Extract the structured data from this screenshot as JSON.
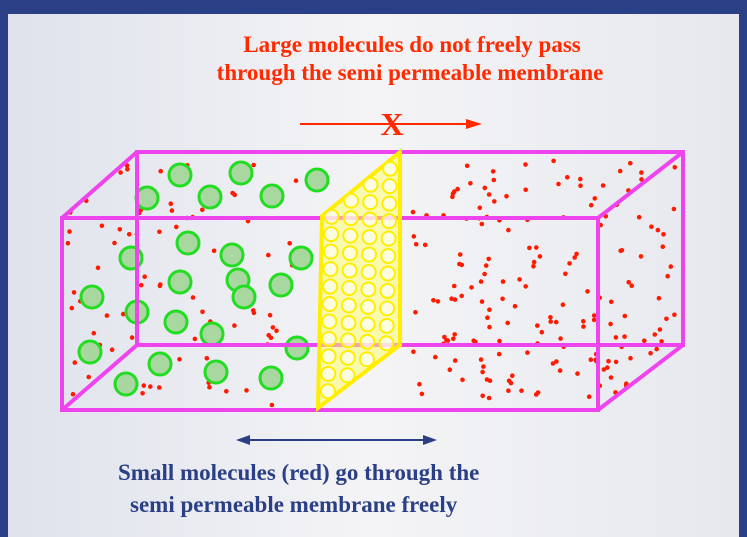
{
  "top_caption": {
    "lines": [
      "Large molecules do not freely pass",
      "through the semi permeable membrane"
    ]
  },
  "blocked_marker": "X",
  "bottom_caption": {
    "lines": [
      "Small molecules (red) go through the",
      "semi permeable membrane freely"
    ]
  }
}
